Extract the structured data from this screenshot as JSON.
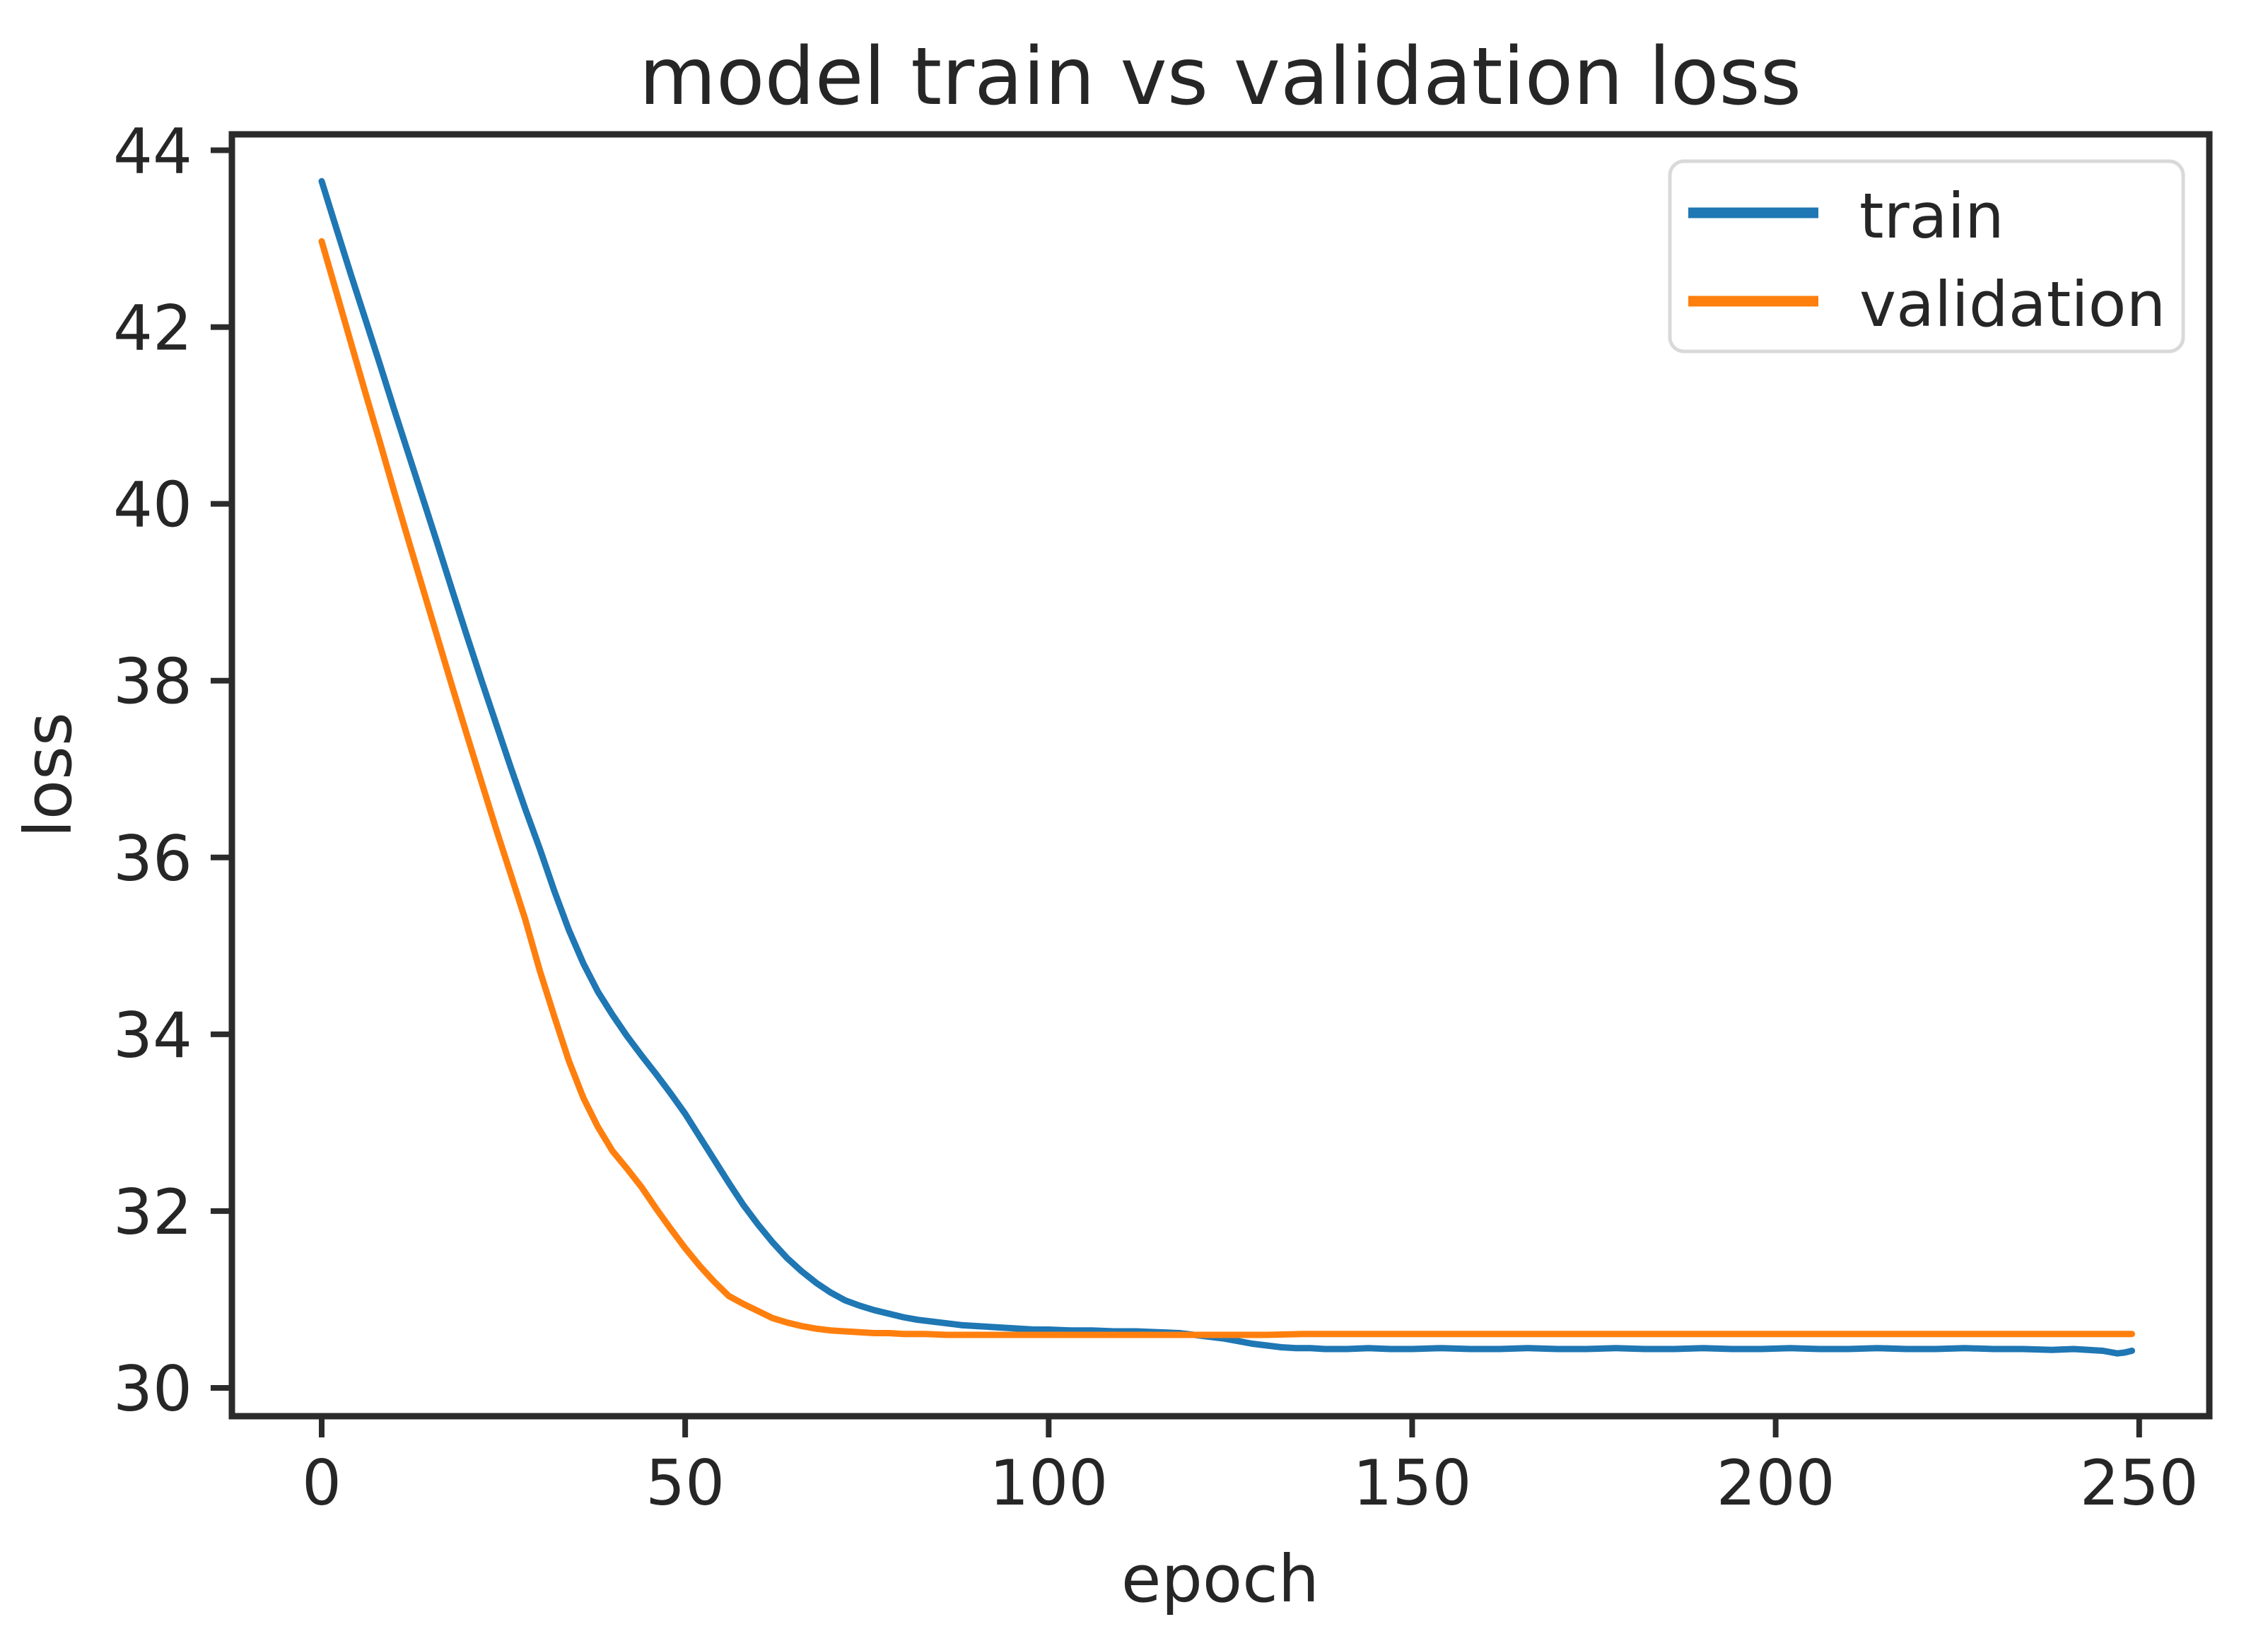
{
  "figure": {
    "background": "#ffffff",
    "text_color": "#262626",
    "axis_color": "#2b2b2b",
    "legend_border_color": "#d9d9d9"
  },
  "chart_data": {
    "type": "line",
    "title": "model train vs validation loss",
    "xlabel": "epoch",
    "ylabel": "loss",
    "xlim": [
      -12.35,
      259.65
    ],
    "ylim": [
      29.68,
      44.18
    ],
    "x_ticks": [
      0,
      50,
      100,
      150,
      200,
      250
    ],
    "y_ticks": [
      30,
      32,
      34,
      36,
      38,
      40,
      42,
      44
    ],
    "grid": false,
    "legend_position": "upper right",
    "series": [
      {
        "name": "train",
        "color": "#1f77b4",
        "points": [
          [
            0,
            43.65
          ],
          [
            2,
            43.12
          ],
          [
            4,
            42.6
          ],
          [
            6,
            42.09
          ],
          [
            8,
            41.58
          ],
          [
            10,
            41.06
          ],
          [
            12,
            40.55
          ],
          [
            14,
            40.04
          ],
          [
            16,
            39.53
          ],
          [
            18,
            39.01
          ],
          [
            20,
            38.5
          ],
          [
            22,
            38.0
          ],
          [
            24,
            37.51
          ],
          [
            26,
            37.02
          ],
          [
            28,
            36.55
          ],
          [
            30,
            36.1
          ],
          [
            32,
            35.62
          ],
          [
            34,
            35.18
          ],
          [
            36,
            34.8
          ],
          [
            38,
            34.48
          ],
          [
            40,
            34.22
          ],
          [
            42,
            33.98
          ],
          [
            44,
            33.76
          ],
          [
            46,
            33.55
          ],
          [
            48,
            33.33
          ],
          [
            50,
            33.1
          ],
          [
            52,
            32.84
          ],
          [
            54,
            32.58
          ],
          [
            56,
            32.32
          ],
          [
            58,
            32.07
          ],
          [
            60,
            31.85
          ],
          [
            62,
            31.65
          ],
          [
            64,
            31.47
          ],
          [
            66,
            31.32
          ],
          [
            68,
            31.19
          ],
          [
            70,
            31.08
          ],
          [
            72,
            30.99
          ],
          [
            74,
            30.93
          ],
          [
            76,
            30.88
          ],
          [
            78,
            30.84
          ],
          [
            80,
            30.8
          ],
          [
            82,
            30.77
          ],
          [
            84,
            30.75
          ],
          [
            86,
            30.73
          ],
          [
            88,
            30.71
          ],
          [
            90,
            30.7
          ],
          [
            92,
            30.69
          ],
          [
            94,
            30.68
          ],
          [
            96,
            30.67
          ],
          [
            98,
            30.66
          ],
          [
            100,
            30.66
          ],
          [
            103,
            30.65
          ],
          [
            106,
            30.65
          ],
          [
            109,
            30.64
          ],
          [
            112,
            30.64
          ],
          [
            115,
            30.63
          ],
          [
            118,
            30.62
          ],
          [
            120,
            30.6
          ],
          [
            122,
            30.58
          ],
          [
            124,
            30.56
          ],
          [
            126,
            30.53
          ],
          [
            128,
            30.5
          ],
          [
            130,
            30.48
          ],
          [
            132,
            30.46
          ],
          [
            134,
            30.45
          ],
          [
            136,
            30.45
          ],
          [
            138,
            30.44
          ],
          [
            141,
            30.44
          ],
          [
            144,
            30.45
          ],
          [
            147,
            30.44
          ],
          [
            150,
            30.44
          ],
          [
            154,
            30.45
          ],
          [
            158,
            30.44
          ],
          [
            162,
            30.44
          ],
          [
            166,
            30.45
          ],
          [
            170,
            30.44
          ],
          [
            174,
            30.44
          ],
          [
            178,
            30.45
          ],
          [
            182,
            30.44
          ],
          [
            186,
            30.44
          ],
          [
            190,
            30.45
          ],
          [
            194,
            30.44
          ],
          [
            198,
            30.44
          ],
          [
            202,
            30.45
          ],
          [
            206,
            30.44
          ],
          [
            210,
            30.44
          ],
          [
            214,
            30.45
          ],
          [
            218,
            30.44
          ],
          [
            222,
            30.44
          ],
          [
            226,
            30.45
          ],
          [
            230,
            30.44
          ],
          [
            234,
            30.44
          ],
          [
            238,
            30.43
          ],
          [
            241,
            30.44
          ],
          [
            243,
            30.43
          ],
          [
            245,
            30.42
          ],
          [
            247,
            30.39
          ],
          [
            248,
            30.4
          ],
          [
            249,
            30.42
          ]
        ]
      },
      {
        "name": "validation",
        "color": "#ff7f0e",
        "points": [
          [
            0,
            42.97
          ],
          [
            2,
            42.4
          ],
          [
            4,
            41.83
          ],
          [
            6,
            41.26
          ],
          [
            8,
            40.7
          ],
          [
            10,
            40.13
          ],
          [
            12,
            39.57
          ],
          [
            14,
            39.02
          ],
          [
            16,
            38.47
          ],
          [
            18,
            37.92
          ],
          [
            20,
            37.38
          ],
          [
            22,
            36.85
          ],
          [
            24,
            36.32
          ],
          [
            26,
            35.81
          ],
          [
            28,
            35.3
          ],
          [
            30,
            34.72
          ],
          [
            32,
            34.2
          ],
          [
            34,
            33.7
          ],
          [
            36,
            33.28
          ],
          [
            38,
            32.95
          ],
          [
            40,
            32.68
          ],
          [
            42,
            32.48
          ],
          [
            44,
            32.27
          ],
          [
            46,
            32.03
          ],
          [
            48,
            31.8
          ],
          [
            50,
            31.58
          ],
          [
            52,
            31.38
          ],
          [
            54,
            31.2
          ],
          [
            56,
            31.04
          ],
          [
            58,
            30.95
          ],
          [
            60,
            30.87
          ],
          [
            62,
            30.79
          ],
          [
            64,
            30.74
          ],
          [
            66,
            30.7
          ],
          [
            68,
            30.67
          ],
          [
            70,
            30.65
          ],
          [
            72,
            30.64
          ],
          [
            74,
            30.63
          ],
          [
            76,
            30.62
          ],
          [
            78,
            30.62
          ],
          [
            80,
            30.61
          ],
          [
            83,
            30.61
          ],
          [
            86,
            30.6
          ],
          [
            90,
            30.6
          ],
          [
            95,
            30.6
          ],
          [
            100,
            30.6
          ],
          [
            105,
            30.6
          ],
          [
            110,
            30.6
          ],
          [
            115,
            30.6
          ],
          [
            120,
            30.6
          ],
          [
            125,
            30.6
          ],
          [
            130,
            30.6
          ],
          [
            135,
            30.61
          ],
          [
            140,
            30.61
          ],
          [
            145,
            30.61
          ],
          [
            150,
            30.61
          ],
          [
            155,
            30.61
          ],
          [
            160,
            30.61
          ],
          [
            165,
            30.61
          ],
          [
            170,
            30.61
          ],
          [
            175,
            30.61
          ],
          [
            180,
            30.61
          ],
          [
            185,
            30.61
          ],
          [
            190,
            30.61
          ],
          [
            195,
            30.61
          ],
          [
            200,
            30.61
          ],
          [
            205,
            30.61
          ],
          [
            210,
            30.61
          ],
          [
            215,
            30.61
          ],
          [
            220,
            30.61
          ],
          [
            225,
            30.61
          ],
          [
            230,
            30.61
          ],
          [
            235,
            30.61
          ],
          [
            240,
            30.61
          ],
          [
            245,
            30.61
          ],
          [
            249,
            30.61
          ]
        ]
      }
    ]
  }
}
